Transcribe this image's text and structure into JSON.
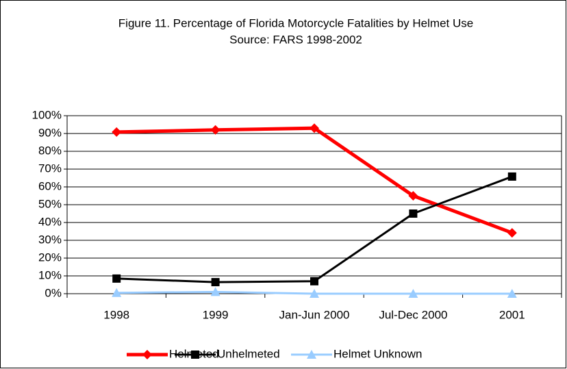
{
  "chart_data": {
    "type": "line",
    "title": "Figure 11. Percentage of Florida Motorcycle Fatalities by Helmet Use",
    "subtitle": "Source: FARS 1998-2002",
    "categories": [
      "1998",
      "1999",
      "Jan-Jun 2000",
      "Jul-Dec 2000",
      "2001"
    ],
    "series": [
      {
        "name": "Helmeted",
        "color": "#ff0000",
        "marker": "diamond",
        "values": [
          90.8,
          92,
          93,
          55,
          34.2
        ]
      },
      {
        "name": "Unhelmeted",
        "color": "#000000",
        "marker": "square",
        "values": [
          8.5,
          6.5,
          7,
          45,
          65.8
        ]
      },
      {
        "name": "Helmet Unknown",
        "color": "#99ccff",
        "marker": "triangle",
        "values": [
          0.5,
          1,
          0,
          0,
          0
        ]
      }
    ],
    "ylim": [
      0,
      100
    ],
    "yticks": [
      {
        "value": 0,
        "label": "0%"
      },
      {
        "value": 10,
        "label": "10%"
      },
      {
        "value": 20,
        "label": "20%"
      },
      {
        "value": 30,
        "label": "30%"
      },
      {
        "value": 40,
        "label": "40%"
      },
      {
        "value": 50,
        "label": "50%"
      },
      {
        "value": 60,
        "label": "60%"
      },
      {
        "value": 70,
        "label": "70%"
      },
      {
        "value": 80,
        "label": "80%"
      },
      {
        "value": 90,
        "label": "90%"
      },
      {
        "value": 100,
        "label": "100%"
      }
    ],
    "grid": true,
    "legend": "bottom"
  }
}
